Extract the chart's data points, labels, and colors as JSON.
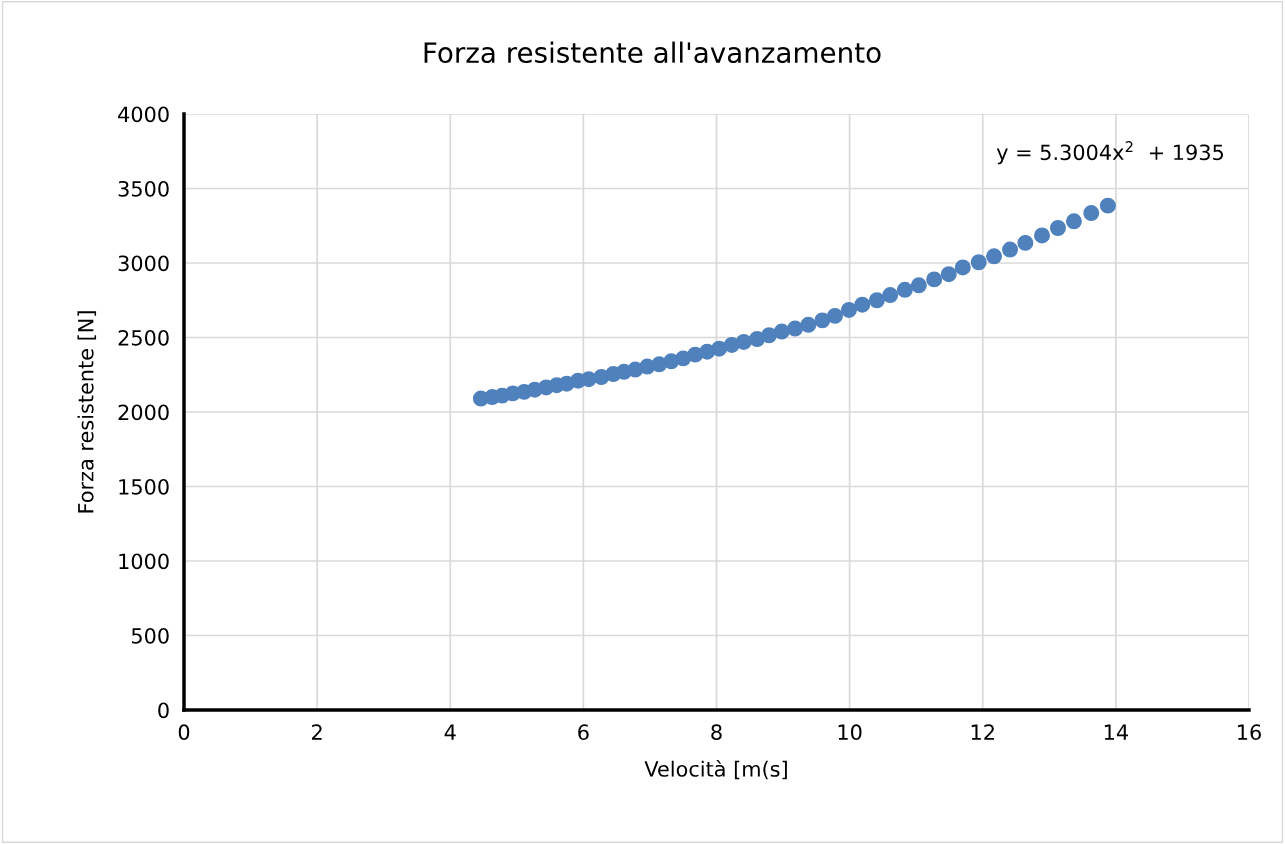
{
  "chart_data": {
    "type": "scatter",
    "title": "Forza resistente all'avanzamento",
    "xlabel": "Velocità [m(s]",
    "ylabel": "Forza resistente [N]",
    "annotations": [
      "y = 5.3004x$^{2}$  + 1935"
    ],
    "x": [
      4.46,
      4.63,
      4.78,
      4.94,
      5.11,
      5.27,
      5.44,
      5.6,
      5.75,
      5.92,
      6.08,
      6.27,
      6.45,
      6.61,
      6.78,
      6.96,
      7.14,
      7.32,
      7.5,
      7.68,
      7.86,
      8.04,
      8.23,
      8.41,
      8.61,
      8.79,
      8.98,
      9.18,
      9.38,
      9.59,
      9.78,
      9.99,
      10.19,
      10.41,
      10.61,
      10.83,
      11.04,
      11.27,
      11.49,
      11.7,
      11.94,
      12.17,
      12.41,
      12.64,
      12.89,
      13.13,
      13.37,
      13.63,
      13.88
    ],
    "series": [
      {
        "color": "#4f81bd",
        "values": [
          2090,
          2100,
          2110,
          2125,
          2135,
          2150,
          2165,
          2180,
          2190,
          2210,
          2220,
          2235,
          2255,
          2270,
          2285,
          2305,
          2320,
          2340,
          2360,
          2385,
          2405,
          2425,
          2450,
          2470,
          2490,
          2515,
          2540,
          2560,
          2585,
          2615,
          2645,
          2685,
          2720,
          2750,
          2785,
          2820,
          2850,
          2890,
          2925,
          2970,
          3005,
          3045,
          3090,
          3135,
          3185,
          3235,
          3280,
          3335,
          3385
        ]
      }
    ],
    "xlim": [
      0,
      16
    ],
    "xticks": [
      0,
      2,
      4,
      6,
      8,
      10,
      12,
      14,
      16
    ],
    "ylim": [
      0,
      4000
    ],
    "yticks": [
      0,
      500,
      1000,
      1500,
      2000,
      2500,
      3000,
      3500,
      4000
    ],
    "grid": true,
    "marker": "circle",
    "legend": false
  }
}
